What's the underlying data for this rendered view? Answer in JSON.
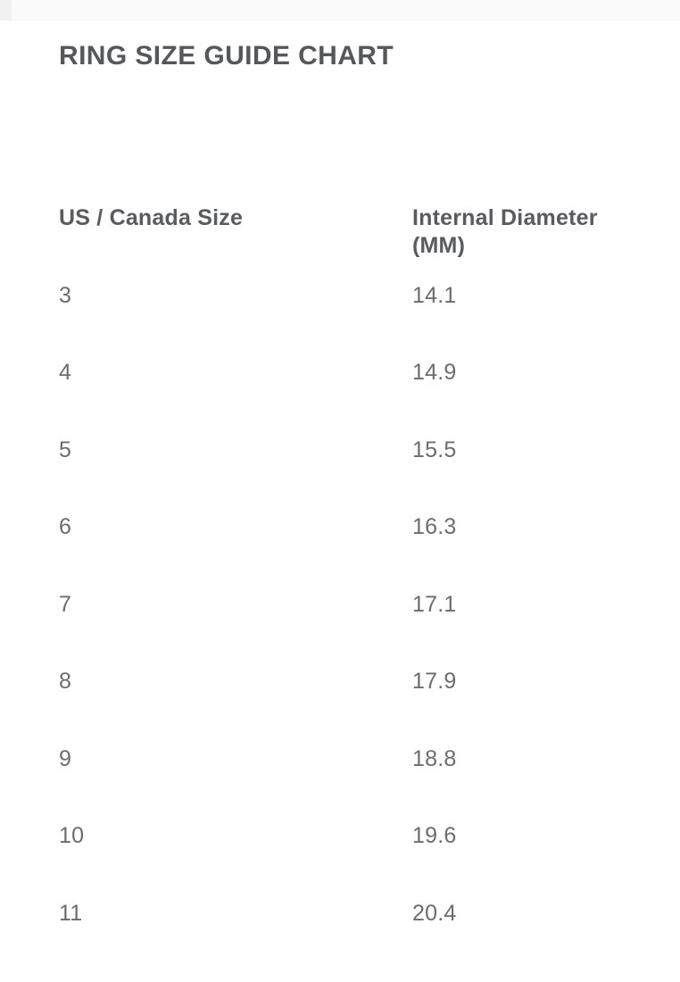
{
  "chart_data": {
    "type": "table",
    "title": "RING SIZE GUIDE CHART",
    "columns": [
      "US / Canada Size",
      "Internal Diameter (MM)"
    ],
    "categories": [
      "3",
      "4",
      "5",
      "6",
      "7",
      "8",
      "9",
      "10",
      "11"
    ],
    "values": [
      "14.1",
      "14.9",
      "15.5",
      "16.3",
      "17.1",
      "17.9",
      "18.8",
      "19.6",
      "20.4"
    ],
    "xlabel": "US / Canada Size",
    "ylabel": "Internal Diameter (MM)"
  },
  "colors": {
    "background": "#ffffff",
    "top_band": "#fafafa",
    "title_text": "#55575b",
    "header_text": "#595b5f",
    "value_text": "#6a6c70"
  }
}
